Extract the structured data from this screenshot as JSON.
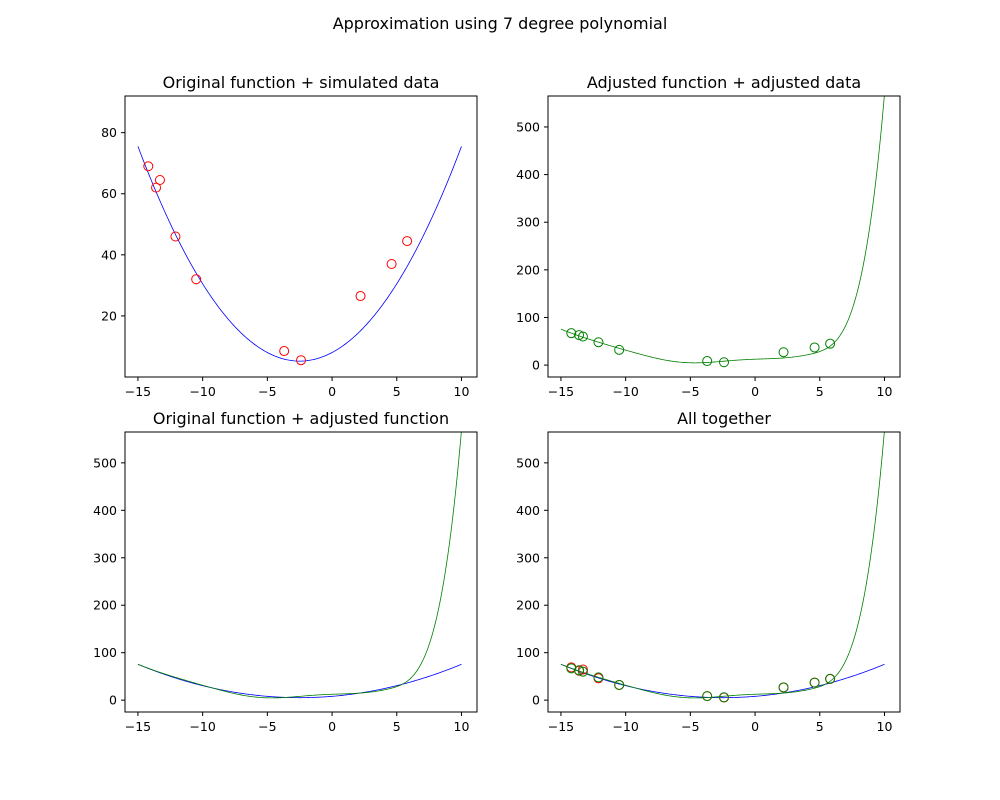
{
  "figure": {
    "suptitle": "Approximation using 7 degree polynomial"
  },
  "colors": {
    "original_curve": "#0000ff",
    "adjusted_curve": "#008000",
    "simulated_points": "#ff0000",
    "adjusted_points": "#008000",
    "background": "#ffffff"
  },
  "chart_data": [
    {
      "type": "scatter",
      "title": "Original function + simulated data",
      "xlabel": "",
      "ylabel": "",
      "xlim": [
        -16,
        11.2
      ],
      "ylim": [
        0,
        92
      ],
      "xticks": [
        -15,
        -10,
        -5,
        0,
        5,
        10
      ],
      "xtick_labels": [
        "−15",
        "−10",
        "−5",
        "0",
        "5",
        "10"
      ],
      "yticks": [
        20,
        40,
        60,
        80
      ],
      "ytick_labels": [
        "20",
        "40",
        "60",
        "80"
      ],
      "grid": false,
      "series": [
        {
          "kind": "line",
          "role": "original",
          "x_range": [
            -15,
            10
          ]
        },
        {
          "kind": "points",
          "role": "simulated",
          "x": [
            -14.2,
            -13.6,
            -13.3,
            -12.1,
            -10.5,
            -3.7,
            -2.4,
            2.2,
            4.6,
            5.8
          ],
          "y": [
            69,
            62,
            64.5,
            46,
            32,
            8.5,
            5.5,
            26.5,
            37,
            44.5
          ]
        }
      ]
    },
    {
      "type": "scatter",
      "title": "Adjusted function + adjusted data",
      "xlabel": "",
      "ylabel": "",
      "xlim": [
        -16,
        11.2
      ],
      "ylim": [
        -25,
        565
      ],
      "xticks": [
        -15,
        -10,
        -5,
        0,
        5,
        10
      ],
      "xtick_labels": [
        "−15",
        "−10",
        "−5",
        "0",
        "5",
        "10"
      ],
      "yticks": [
        0,
        100,
        200,
        300,
        400,
        500
      ],
      "ytick_labels": [
        "0",
        "100",
        "200",
        "300",
        "400",
        "500"
      ],
      "grid": false,
      "series": [
        {
          "kind": "line",
          "role": "adjusted",
          "x_range": [
            -15,
            10
          ]
        },
        {
          "kind": "points",
          "role": "adjusted",
          "x": [
            -14.2,
            -13.6,
            -13.3,
            -12.1,
            -10.5,
            -3.7,
            -2.4,
            2.2,
            4.6,
            5.8
          ],
          "y": [
            67,
            63,
            60,
            48,
            32,
            8.5,
            6,
            27,
            37,
            45
          ]
        }
      ]
    },
    {
      "type": "line",
      "title": "Original function + adjusted function",
      "xlabel": "",
      "ylabel": "",
      "xlim": [
        -16,
        11.2
      ],
      "ylim": [
        -25,
        565
      ],
      "xticks": [
        -15,
        -10,
        -5,
        0,
        5,
        10
      ],
      "xtick_labels": [
        "−15",
        "−10",
        "−5",
        "0",
        "5",
        "10"
      ],
      "yticks": [
        0,
        100,
        200,
        300,
        400,
        500
      ],
      "ytick_labels": [
        "0",
        "100",
        "200",
        "300",
        "400",
        "500"
      ],
      "grid": false,
      "series": [
        {
          "kind": "line",
          "role": "original",
          "x_range": [
            -15,
            10
          ]
        },
        {
          "kind": "line",
          "role": "adjusted",
          "x_range": [
            -15,
            10
          ]
        }
      ]
    },
    {
      "type": "scatter",
      "title": "All together",
      "xlabel": "",
      "ylabel": "",
      "xlim": [
        -16,
        11.2
      ],
      "ylim": [
        -25,
        565
      ],
      "xticks": [
        -15,
        -10,
        -5,
        0,
        5,
        10
      ],
      "xtick_labels": [
        "−15",
        "−10",
        "−5",
        "0",
        "5",
        "10"
      ],
      "yticks": [
        0,
        100,
        200,
        300,
        400,
        500
      ],
      "ytick_labels": [
        "0",
        "100",
        "200",
        "300",
        "400",
        "500"
      ],
      "grid": false,
      "series": [
        {
          "kind": "line",
          "role": "original",
          "x_range": [
            -15,
            10
          ]
        },
        {
          "kind": "line",
          "role": "adjusted",
          "x_range": [
            -15,
            10
          ]
        },
        {
          "kind": "points",
          "role": "simulated",
          "x": [
            -14.2,
            -13.6,
            -13.3,
            -12.1,
            -10.5,
            -3.7,
            -2.4,
            2.2,
            4.6,
            5.8
          ],
          "y": [
            69,
            62,
            64.5,
            46,
            32,
            8.5,
            5.5,
            26.5,
            37,
            44.5
          ]
        },
        {
          "kind": "points",
          "role": "adjusted",
          "x": [
            -14.2,
            -13.6,
            -13.3,
            -12.1,
            -10.5,
            -3.7,
            -2.4,
            2.2,
            4.6,
            5.8
          ],
          "y": [
            67,
            63,
            60,
            48,
            32,
            8.5,
            6,
            27,
            37,
            45
          ]
        }
      ]
    }
  ]
}
